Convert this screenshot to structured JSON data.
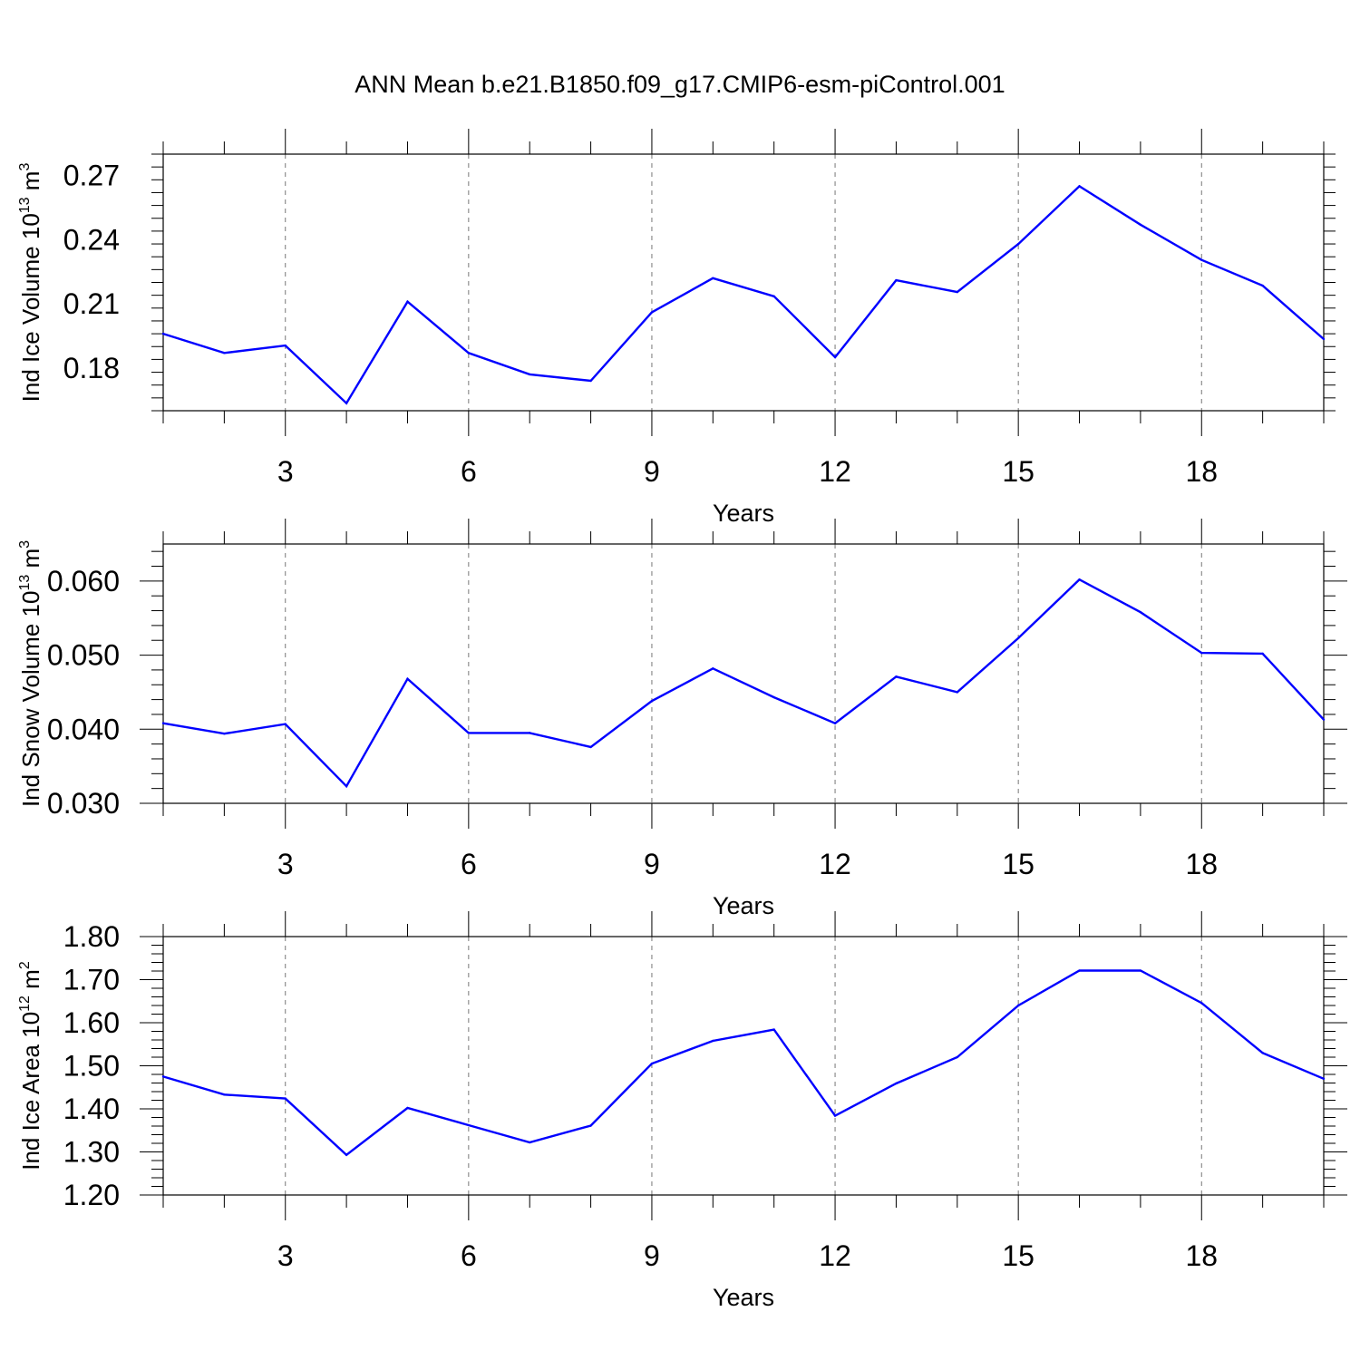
{
  "figure_title": "ANN Mean b.e21.B1850.f09_g17.CMIP6-esm-piControl.001",
  "colors": {
    "series": "#0000ff",
    "axes": "#000000",
    "grid": "#777777"
  },
  "chart_data": [
    {
      "type": "line",
      "xlabel": "Years",
      "ylabel": {
        "base": "Ind Ice Volume 10",
        "exp": "13",
        "unit": " m",
        "unit_exp": "3"
      },
      "xlim": [
        1,
        20
      ],
      "ylim": [
        0.16,
        0.28
      ],
      "xticks": [
        3,
        6,
        9,
        12,
        15,
        18
      ],
      "xtick_labels": [
        "3",
        "6",
        "9",
        "12",
        "15",
        "18"
      ],
      "yticks": [
        0.18,
        0.21,
        0.24,
        0.27
      ],
      "ytick_labels": [
        "0.18",
        "0.21",
        "0.24",
        "0.27"
      ],
      "grid": "vertical dashed at major x ticks",
      "x": [
        1,
        2,
        3,
        4,
        5,
        6,
        7,
        8,
        9,
        10,
        11,
        12,
        13,
        14,
        15,
        16,
        17,
        18,
        19,
        20
      ],
      "series": [
        {
          "values": [
            0.196,
            0.187,
            0.1905,
            0.1635,
            0.211,
            0.187,
            0.177,
            0.174,
            0.206,
            0.222,
            0.2135,
            0.185,
            0.221,
            0.2155,
            0.238,
            0.265,
            0.247,
            0.2305,
            0.2185,
            0.1935
          ]
        }
      ]
    },
    {
      "type": "line",
      "xlabel": "Years",
      "ylabel": {
        "base": "Ind Snow Volume 10",
        "exp": "13",
        "unit": " m",
        "unit_exp": "3"
      },
      "xlim": [
        1,
        20
      ],
      "ylim": [
        0.03,
        0.065
      ],
      "xticks": [
        3,
        6,
        9,
        12,
        15,
        18
      ],
      "xtick_labels": [
        "3",
        "6",
        "9",
        "12",
        "15",
        "18"
      ],
      "yticks": [
        0.03,
        0.04,
        0.05,
        0.06
      ],
      "ytick_labels": [
        "0.030",
        "0.040",
        "0.050",
        "0.060"
      ],
      "grid": "vertical dashed at major x ticks",
      "x": [
        1,
        2,
        3,
        4,
        5,
        6,
        7,
        8,
        9,
        10,
        11,
        12,
        13,
        14,
        15,
        16,
        17,
        18,
        19,
        20
      ],
      "series": [
        {
          "values": [
            0.0408,
            0.0394,
            0.0407,
            0.0323,
            0.0468,
            0.0395,
            0.0395,
            0.0376,
            0.0438,
            0.0482,
            0.0443,
            0.0408,
            0.0471,
            0.045,
            0.0523,
            0.0602,
            0.0558,
            0.0503,
            0.0502,
            0.0413
          ]
        }
      ]
    },
    {
      "type": "line",
      "xlabel": "Years",
      "ylabel": {
        "base": "Ind Ice Area 10",
        "exp": "12",
        "unit": " m",
        "unit_exp": "2"
      },
      "xlim": [
        1,
        20
      ],
      "ylim": [
        1.2,
        1.8
      ],
      "xticks": [
        3,
        6,
        9,
        12,
        15,
        18
      ],
      "xtick_labels": [
        "3",
        "6",
        "9",
        "12",
        "15",
        "18"
      ],
      "yticks": [
        1.2,
        1.3,
        1.4,
        1.5,
        1.6,
        1.7,
        1.8
      ],
      "ytick_labels": [
        "1.20",
        "1.30",
        "1.40",
        "1.50",
        "1.60",
        "1.70",
        "1.80"
      ],
      "grid": "vertical dashed at major x ticks",
      "x": [
        1,
        2,
        3,
        4,
        5,
        6,
        7,
        8,
        9,
        10,
        11,
        12,
        13,
        14,
        15,
        16,
        17,
        18,
        19,
        20
      ],
      "series": [
        {
          "values": [
            1.475,
            1.433,
            1.424,
            1.293,
            1.402,
            1.362,
            1.322,
            1.361,
            1.505,
            1.558,
            1.584,
            1.384,
            1.459,
            1.52,
            1.64,
            1.721,
            1.721,
            1.646,
            1.53,
            1.47
          ]
        }
      ]
    }
  ]
}
